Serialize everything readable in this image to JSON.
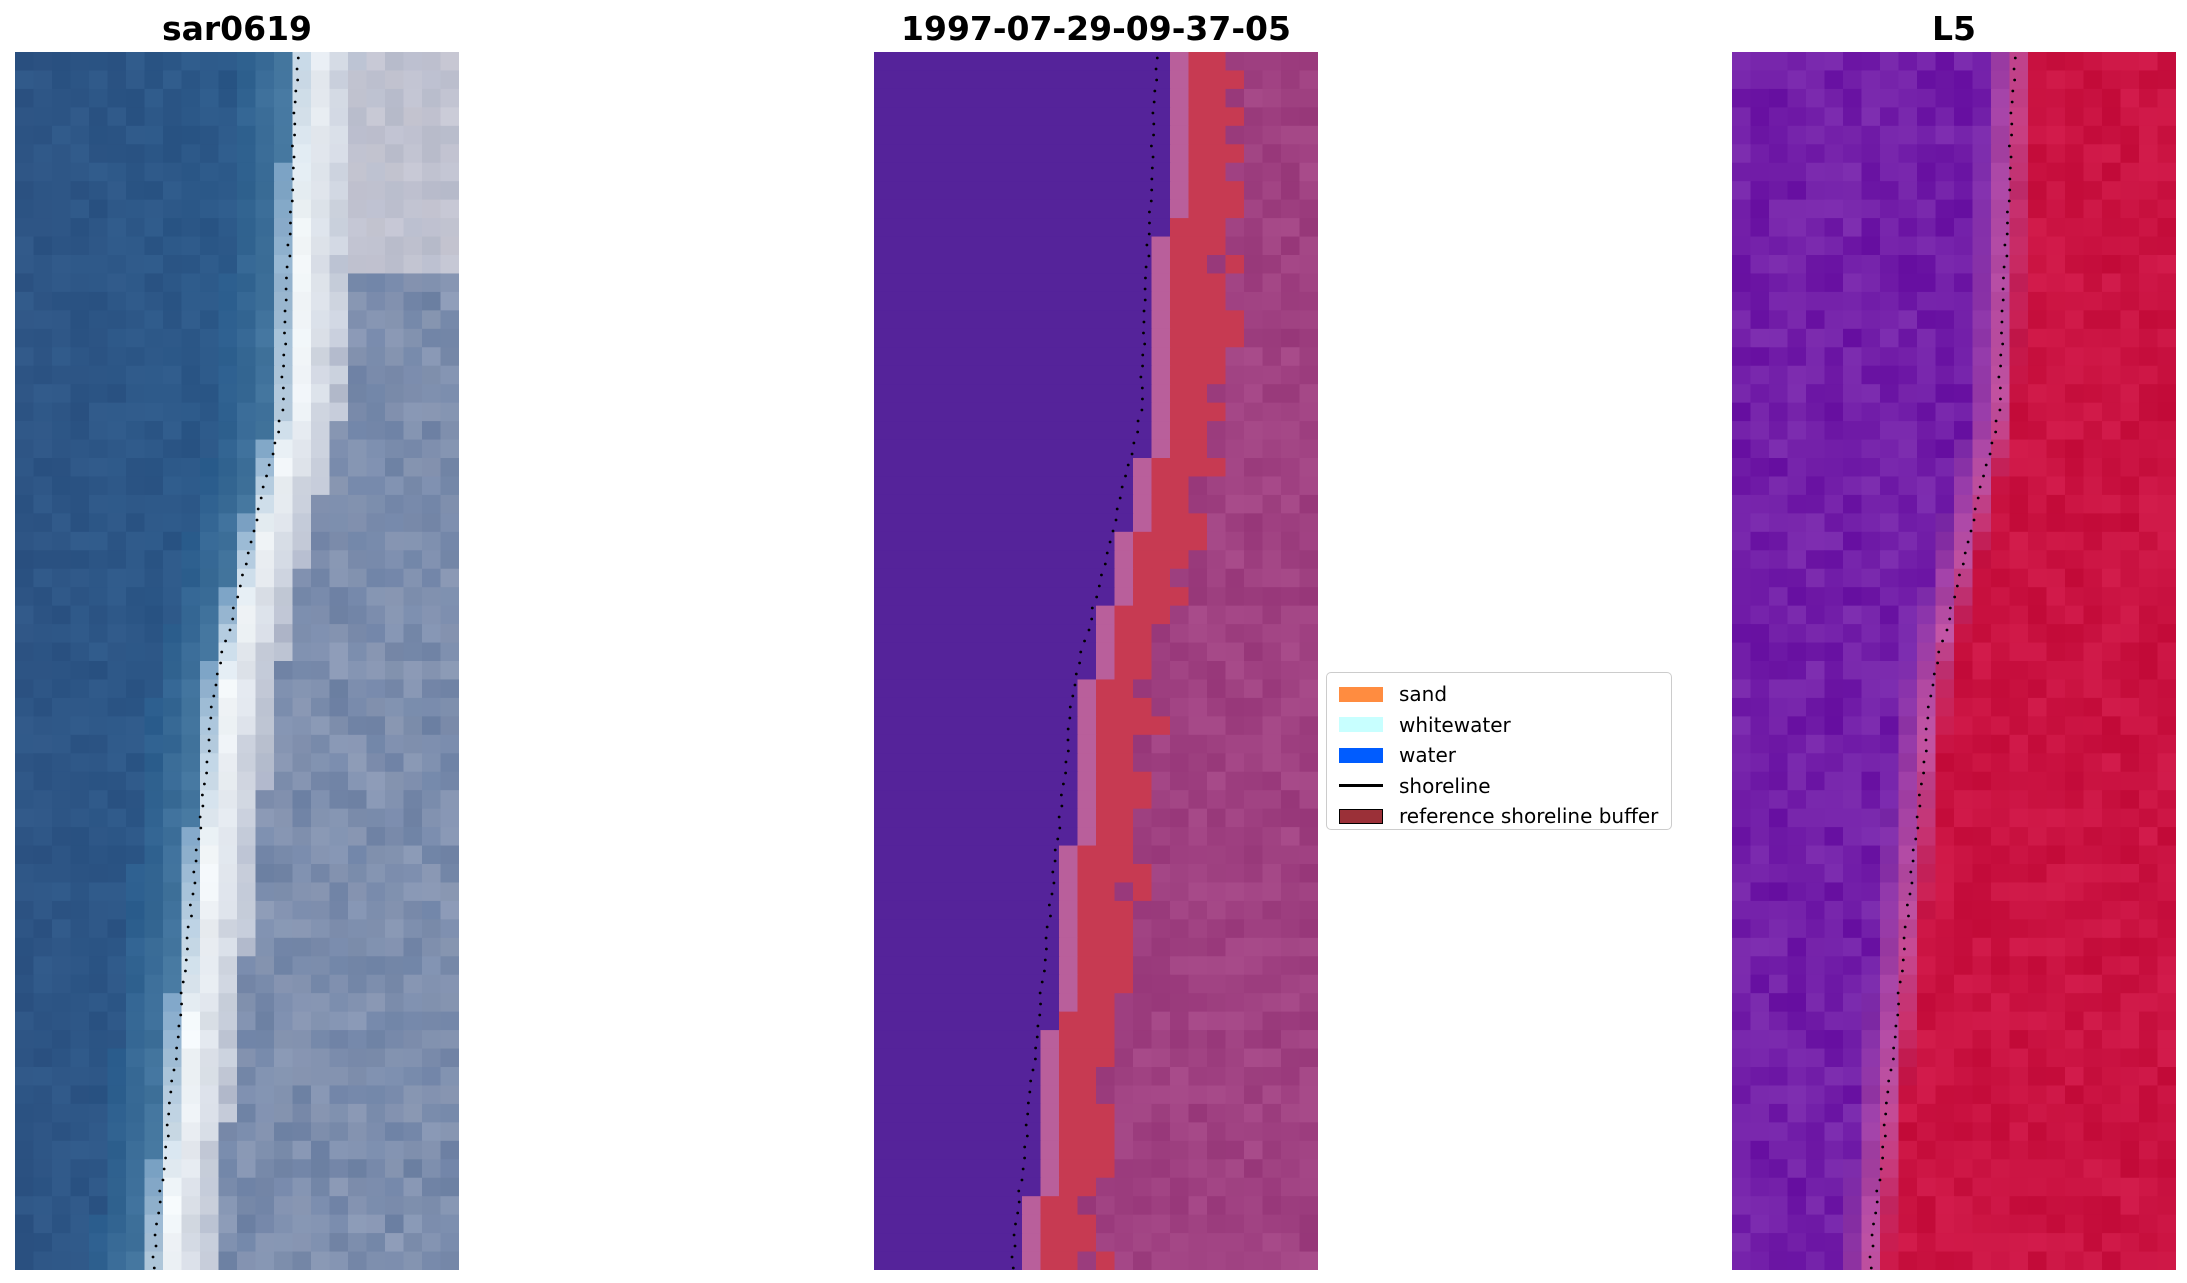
{
  "titles": {
    "rgb": "sar0619",
    "classification": "1997-07-29-09-37-05",
    "index": "L5"
  },
  "legend": {
    "items": [
      {
        "label": "sand",
        "color": "#ff8c40",
        "kind": "patch"
      },
      {
        "label": "whitewater",
        "color": "#c8ffff",
        "kind": "patch"
      },
      {
        "label": "water",
        "color": "#005cff",
        "kind": "patch"
      },
      {
        "label": "shoreline",
        "color": "#000000",
        "kind": "line"
      },
      {
        "label": "reference shoreline buffer",
        "color": "#9b3038",
        "kind": "patch",
        "edge": "#000000"
      }
    ]
  },
  "colors": {
    "water_rgb": "#2e5585",
    "classified_water": "#55239a",
    "sand_buffer": "#c73a52",
    "sand_outside": "#9c3d7e",
    "mndwi_low": "#6d14a6",
    "mndwi_high": "#c8103e",
    "shoreline": "#000000"
  }
}
